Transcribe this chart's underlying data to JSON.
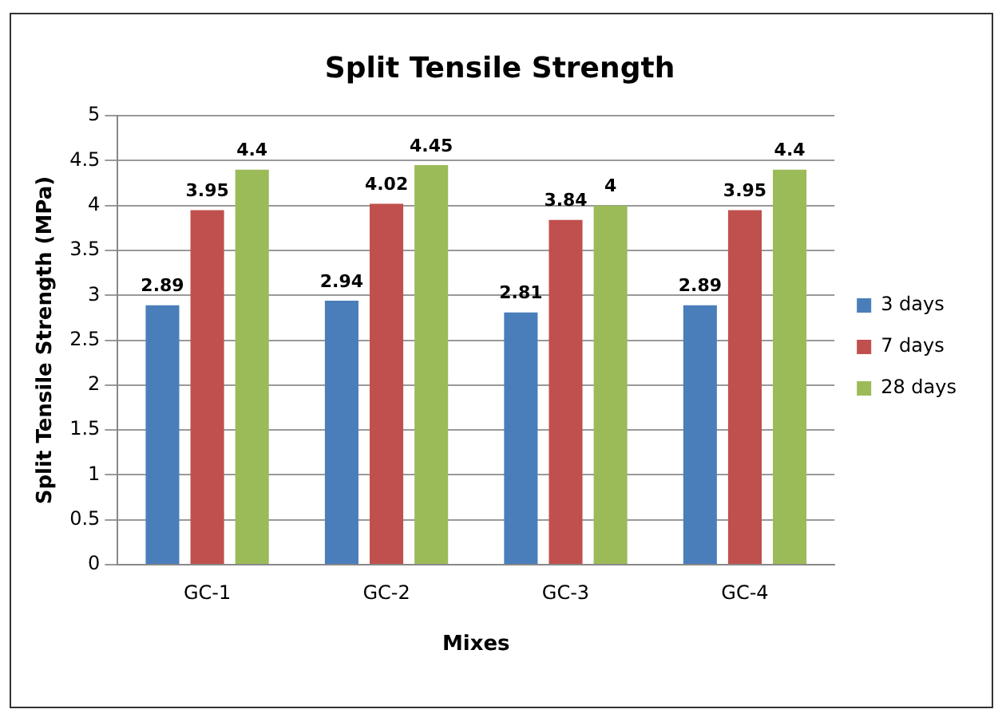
{
  "chart_data": {
    "type": "bar",
    "title": "Split Tensile Strength",
    "xlabel": "Mixes",
    "ylabel": "Split Tensile Strength (MPa)",
    "categories": [
      "GC-1",
      "GC-2",
      "GC-3",
      "GC-4"
    ],
    "series": [
      {
        "name": "3 days",
        "color": "#4a7ebb",
        "values": [
          2.89,
          2.94,
          2.81,
          2.89
        ]
      },
      {
        "name": "7 days",
        "color": "#c0504d",
        "values": [
          3.95,
          4.02,
          3.84,
          3.95
        ]
      },
      {
        "name": "28 days",
        "color": "#9bbb59",
        "values": [
          4.4,
          4.45,
          4,
          4.4
        ]
      }
    ],
    "ylim": [
      0,
      5
    ],
    "yticks": [
      0,
      0.5,
      1,
      1.5,
      2,
      2.5,
      3,
      3.5,
      4,
      4.5,
      5
    ],
    "grid": "y",
    "legend": "right",
    "data_labels": true
  }
}
